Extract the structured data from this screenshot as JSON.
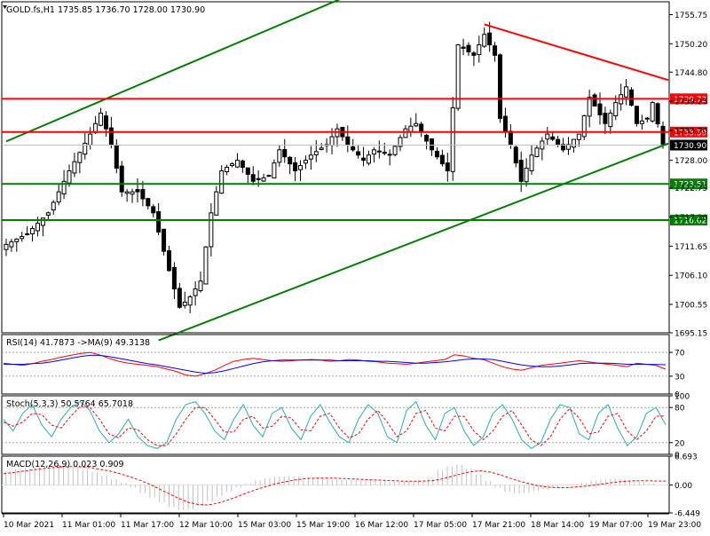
{
  "chart_data": [
    {
      "type": "candlestick",
      "title": "GOLD.fs,H1 1735.85 1736.70 1728.00 1730.90",
      "ylim": [
        1695.15,
        1758.2
      ],
      "y_ticks": [
        "1755.75",
        "1750.20",
        "1744.80",
        "1739.25",
        "1733.70",
        "1728.00",
        "1722.75",
        "1717.20",
        "1711.65",
        "1706.10",
        "1700.55",
        "1695.15"
      ],
      "x_labels": [
        "10 Mar 2021",
        "11 Mar 01:00",
        "11 Mar 17:00",
        "12 Mar 10:00",
        "15 Mar 03:00",
        "15 Mar 19:00",
        "16 Mar 12:00",
        "17 Mar 05:00",
        "17 Mar 21:00",
        "18 Mar 14:00",
        "19 Mar 07:00",
        "19 Mar 23:00"
      ],
      "current_price": "1730.90",
      "levels": [
        {
          "label": "1739.72",
          "value": 1739.72,
          "color": "#ff0000"
        },
        {
          "label": "1733.39",
          "value": 1733.39,
          "color": "#ff0000"
        },
        {
          "label": "1723.51",
          "value": 1723.51,
          "color": "#008000"
        },
        {
          "label": "1716.62",
          "value": 1716.62,
          "color": "#008000"
        }
      ],
      "trendlines": [
        {
          "color": "#008000",
          "points": [
            [
              0,
              1731.6
            ],
            [
              64,
              1758.9
            ]
          ]
        },
        {
          "color": "#008000",
          "points": [
            [
              29,
              1693.7
            ],
            [
              126,
              1731.2
            ]
          ]
        },
        {
          "color": "#ff0000",
          "points": [
            [
              91,
              1753.9
            ],
            [
              126,
              1743.3
            ]
          ]
        }
      ],
      "close_path": [
        [
          0,
          1712
        ],
        [
          4,
          1714
        ],
        [
          8,
          1718
        ],
        [
          12,
          1726
        ],
        [
          16,
          1733
        ],
        [
          18,
          1737
        ],
        [
          20,
          1731
        ],
        [
          22,
          1722
        ],
        [
          25,
          1722
        ],
        [
          28,
          1718
        ],
        [
          31,
          1707
        ],
        [
          33,
          1700
        ],
        [
          35,
          1702
        ],
        [
          37,
          1705
        ],
        [
          39,
          1718
        ],
        [
          41,
          1726
        ],
        [
          44,
          1728
        ],
        [
          47,
          1724
        ],
        [
          50,
          1725
        ],
        [
          52,
          1730
        ],
        [
          55,
          1726
        ],
        [
          58,
          1729
        ],
        [
          61,
          1731
        ],
        [
          63,
          1734
        ],
        [
          65,
          1731
        ],
        [
          68,
          1728
        ],
        [
          70,
          1730
        ],
        [
          73,
          1729
        ],
        [
          76,
          1734
        ],
        [
          78,
          1735
        ],
        [
          81,
          1730
        ],
        [
          84,
          1726
        ],
        [
          86,
          1750
        ],
        [
          89,
          1748
        ],
        [
          91,
          1752
        ],
        [
          93,
          1748
        ],
        [
          94,
          1736
        ],
        [
          96,
          1731
        ],
        [
          98,
          1724
        ],
        [
          100,
          1729
        ],
        [
          103,
          1733
        ],
        [
          106,
          1730
        ],
        [
          109,
          1733
        ],
        [
          111,
          1740
        ],
        [
          114,
          1735
        ],
        [
          116,
          1739
        ],
        [
          118,
          1742
        ],
        [
          120,
          1735
        ],
        [
          122,
          1736
        ],
        [
          123,
          1739
        ],
        [
          125,
          1730.9
        ]
      ],
      "candle_count": 126
    },
    {
      "type": "line",
      "title": "RSI(14) 41.7873 ->MA(9) 49.3138",
      "ylim": [
        0,
        100
      ],
      "y_ticks": [
        "70",
        "30",
        "0"
      ],
      "series": [
        {
          "name": "RSI(14)",
          "color": "#ff0000",
          "values": [
            52,
            50,
            48,
            51,
            55,
            58,
            62,
            65,
            68,
            70,
            66,
            60,
            55,
            52,
            50,
            48,
            46,
            42,
            38,
            32,
            30,
            34,
            40,
            48,
            55,
            58,
            60,
            58,
            56,
            55,
            56,
            57,
            58,
            57,
            55,
            56,
            58,
            57,
            55,
            54,
            52,
            51,
            50,
            52,
            54,
            56,
            58,
            66,
            64,
            60,
            58,
            52,
            46,
            42,
            40,
            44,
            48,
            50,
            52,
            54,
            56,
            54,
            52,
            50,
            48,
            46,
            52,
            50,
            48,
            41.8
          ]
        },
        {
          "name": "MA(9)",
          "color": "#0000ff",
          "values": [
            50,
            50,
            50,
            51,
            52,
            54,
            57,
            60,
            63,
            65,
            65,
            63,
            60,
            57,
            54,
            51,
            49,
            46,
            43,
            40,
            37,
            35,
            36,
            39,
            43,
            47,
            51,
            54,
            56,
            57,
            57,
            57,
            57,
            57,
            57,
            56,
            56,
            56,
            56,
            55,
            55,
            54,
            53,
            52,
            52,
            53,
            54,
            56,
            58,
            59,
            59,
            58,
            55,
            52,
            49,
            47,
            46,
            46,
            47,
            49,
            51,
            52,
            52,
            52,
            51,
            50,
            50,
            50,
            49.5,
            49.3
          ]
        }
      ]
    },
    {
      "type": "line",
      "title": "Stoch(5,3,3) 50.5764 65.7018",
      "ylim": [
        0,
        100
      ],
      "y_ticks": [
        "100",
        "80",
        "20",
        "0"
      ],
      "series": [
        {
          "name": "Main",
          "color": "#20b2aa",
          "values": [
            60,
            40,
            70,
            85,
            50,
            30,
            60,
            80,
            90,
            75,
            40,
            20,
            35,
            60,
            30,
            15,
            10,
            20,
            60,
            85,
            90,
            70,
            40,
            25,
            60,
            85,
            50,
            30,
            70,
            80,
            45,
            25,
            65,
            85,
            55,
            30,
            20,
            60,
            85,
            70,
            30,
            20,
            75,
            90,
            50,
            25,
            70,
            80,
            40,
            15,
            30,
            70,
            85,
            60,
            25,
            10,
            20,
            60,
            85,
            80,
            35,
            25,
            70,
            85,
            45,
            15,
            30,
            70,
            80,
            50.6
          ]
        },
        {
          "name": "Signal",
          "color": "#ff0000",
          "values": [
            55,
            48,
            55,
            70,
            68,
            50,
            45,
            65,
            82,
            80,
            60,
            35,
            28,
            45,
            42,
            25,
            15,
            15,
            35,
            60,
            80,
            80,
            60,
            38,
            38,
            60,
            65,
            45,
            48,
            65,
            62,
            42,
            40,
            65,
            70,
            45,
            28,
            35,
            60,
            75,
            55,
            30,
            40,
            70,
            75,
            45,
            40,
            65,
            65,
            40,
            25,
            40,
            65,
            75,
            50,
            25,
            15,
            30,
            60,
            78,
            62,
            35,
            38,
            65,
            70,
            40,
            25,
            40,
            65,
            65.7
          ]
        }
      ]
    },
    {
      "type": "bar",
      "title": "MACD(12,26,9) 0.023 0.909",
      "ylim": [
        -6.449,
        6.693
      ],
      "y_ticks": [
        "6.693",
        "0.00",
        "-6.449"
      ],
      "series": [
        {
          "name": "MACD",
          "color": "#c0c0c0",
          "values": [
            3.2,
            3.6,
            3.9,
            4.1,
            4.4,
            4.6,
            4.5,
            4.1,
            3.6,
            3.0,
            2.2,
            1.4,
            0.5,
            -0.6,
            -1.8,
            -2.9,
            -4.0,
            -5.1,
            -5.8,
            -5.6,
            -4.9,
            -3.8,
            -2.6,
            -1.5,
            -0.5,
            0.4,
            1.1,
            1.6,
            1.9,
            2.0,
            2.0,
            1.9,
            1.7,
            1.5,
            1.3,
            1.2,
            1.1,
            1.0,
            1.0,
            0.9,
            0.8,
            0.8,
            0.9,
            1.1,
            1.6,
            3.4,
            4.3,
            4.7,
            3.8,
            2.4,
            0.9,
            -0.5,
            -1.5,
            -1.9,
            -1.8,
            -1.4,
            -1.0,
            -0.6,
            -0.2,
            0.2,
            0.6,
            1.0,
            1.3,
            1.5,
            1.4,
            1.1,
            0.8,
            0.4,
            0.023
          ]
        },
        {
          "name": "Signal",
          "color": "#ff0000",
          "values": [
            2.6,
            2.9,
            3.2,
            3.5,
            3.8,
            4.0,
            4.2,
            4.3,
            4.2,
            4.0,
            3.6,
            3.2,
            2.6,
            1.9,
            1.1,
            0.2,
            -0.9,
            -2.0,
            -3.1,
            -4.0,
            -4.5,
            -4.6,
            -4.2,
            -3.5,
            -2.7,
            -1.8,
            -1.0,
            -0.3,
            0.3,
            0.8,
            1.2,
            1.5,
            1.6,
            1.6,
            1.6,
            1.5,
            1.4,
            1.3,
            1.2,
            1.1,
            1.0,
            0.9,
            0.9,
            0.9,
            1.0,
            1.4,
            2.0,
            2.6,
            3.1,
            3.3,
            3.0,
            2.4,
            1.6,
            0.9,
            0.3,
            -0.2,
            -0.5,
            -0.6,
            -0.6,
            -0.4,
            -0.2,
            0.1,
            0.4,
            0.7,
            0.9,
            1.0,
            1.0,
            0.95,
            0.909
          ]
        }
      ]
    }
  ]
}
